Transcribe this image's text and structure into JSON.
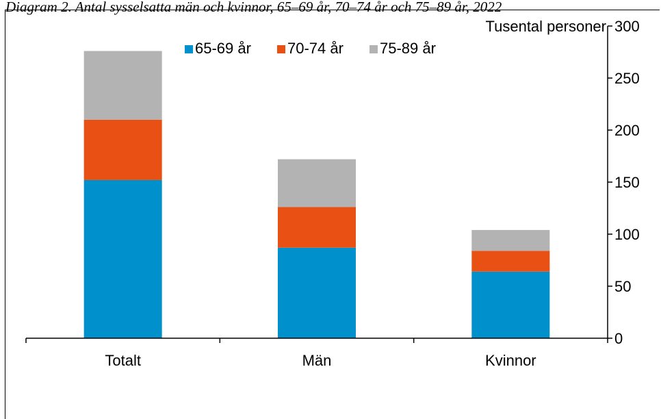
{
  "title": "Diagram 2. Antal sysselsatta män och kvinnor, 65–69 år, 70–74 år och 75–89 år, 2022",
  "chart_data": {
    "type": "bar",
    "stacked": true,
    "categories": [
      "Totalt",
      "Män",
      "Kvinnor"
    ],
    "series": [
      {
        "name": "65-69 år",
        "values": [
          152,
          87,
          64
        ],
        "color": "#0090CC"
      },
      {
        "name": "70-74 år",
        "values": [
          58,
          39,
          20
        ],
        "color": "#E85113"
      },
      {
        "name": "75-89 år",
        "values": [
          66,
          46,
          20
        ],
        "color": "#B3B3B3"
      }
    ],
    "ylabel": "Tusental personer",
    "ylim": [
      0,
      300
    ],
    "yticks": [
      0,
      50,
      100,
      150,
      200,
      250,
      300
    ],
    "y_axis_side": "right",
    "grid": false,
    "legend_position": "top"
  }
}
